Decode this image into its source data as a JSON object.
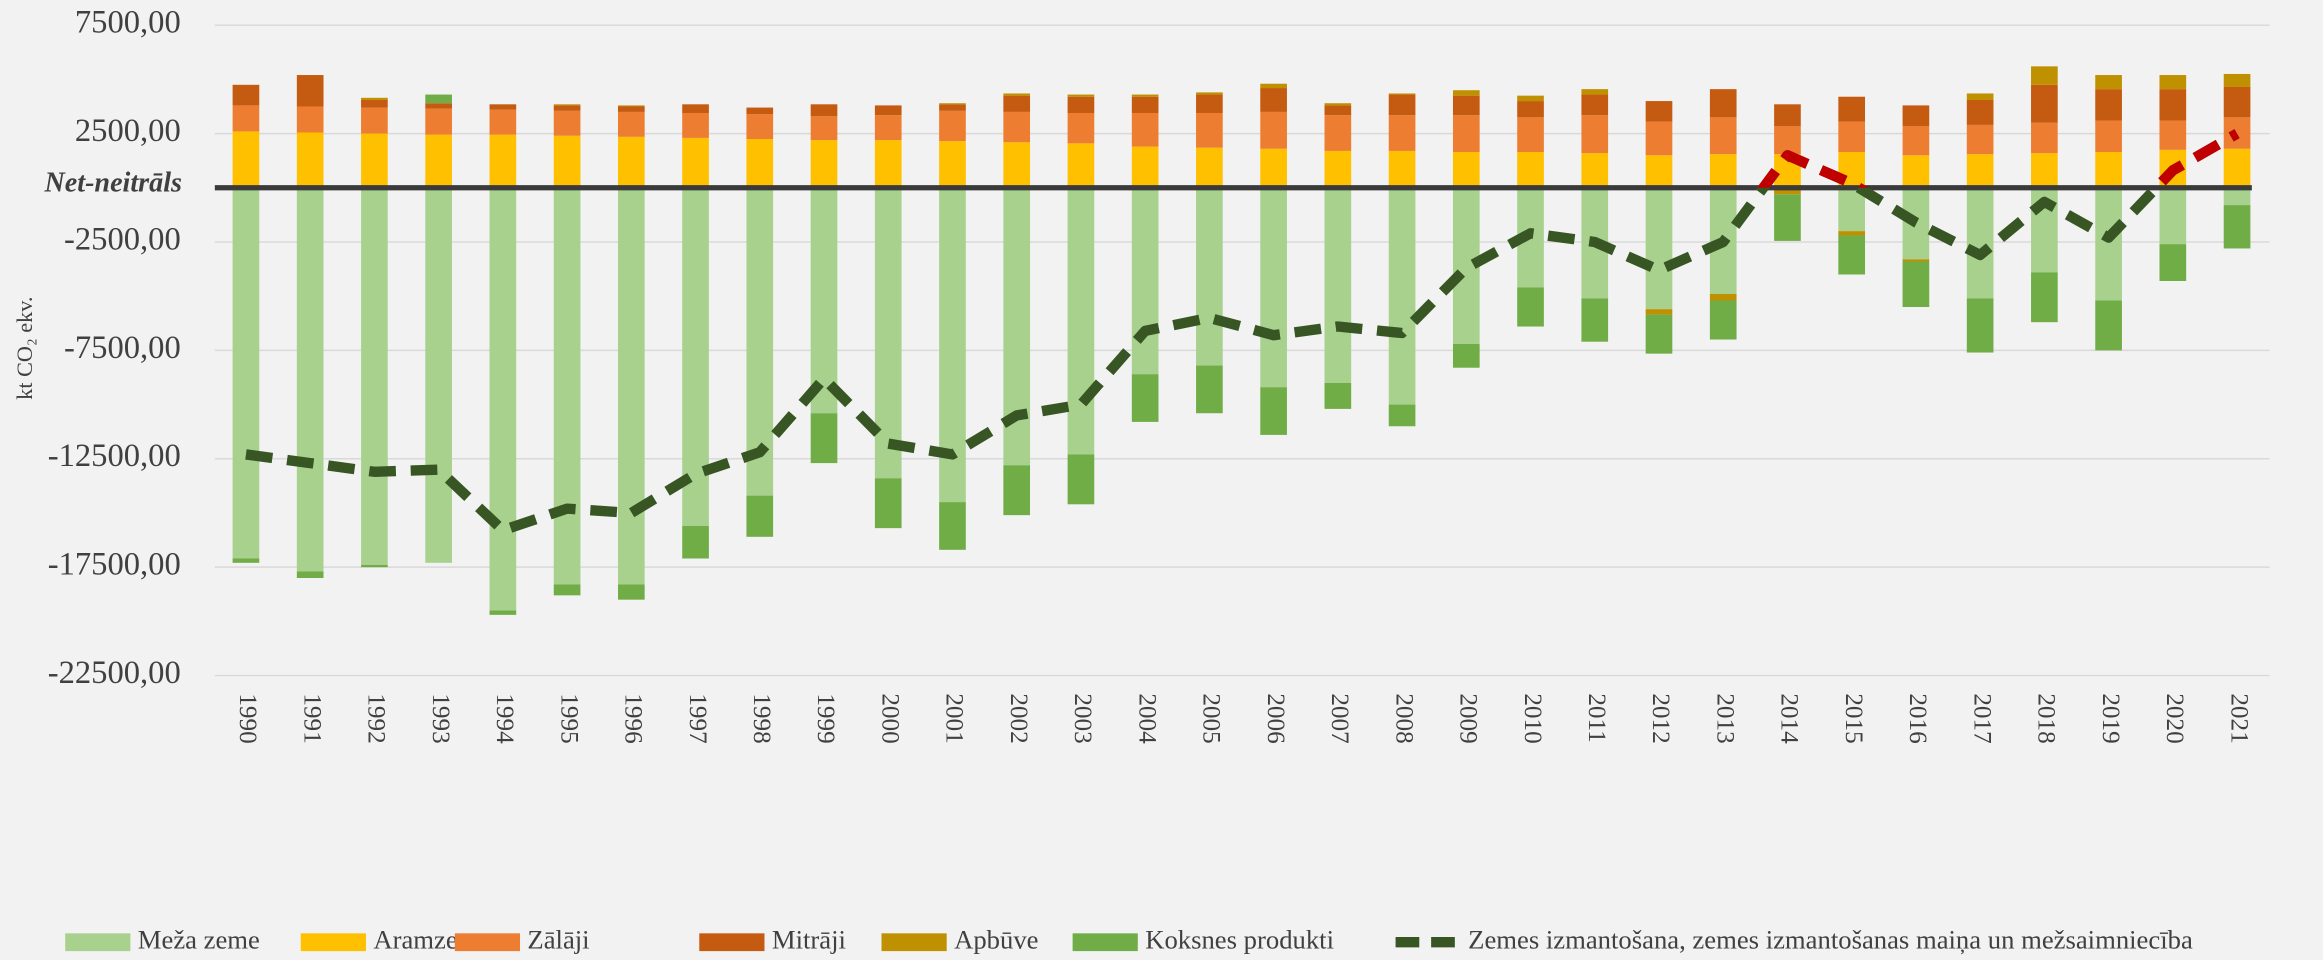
{
  "chart_data": {
    "type": "bar",
    "stacked": true,
    "y_label": "kt CO₂ ekv.",
    "annotation": {
      "text": "Net-neitrāls",
      "value": 0
    },
    "categories": [
      "1990",
      "1991",
      "1992",
      "1993",
      "1994",
      "1995",
      "1996",
      "1997",
      "1998",
      "1999",
      "2000",
      "2001",
      "2002",
      "2003",
      "2004",
      "2005",
      "2006",
      "2007",
      "2008",
      "2009",
      "2010",
      "2011",
      "2012",
      "2013",
      "2014",
      "2015",
      "2016",
      "2017",
      "2018",
      "2019",
      "2020",
      "2021"
    ],
    "ylim": [
      -22500,
      7500
    ],
    "yticks": [
      {
        "value": 7500,
        "label": "7500,00"
      },
      {
        "value": 2500,
        "label": "2500,00"
      },
      {
        "value": -2500,
        "label": "-2500,00"
      },
      {
        "value": -7500,
        "label": "-7500,00"
      },
      {
        "value": -12500,
        "label": "-12500,00"
      },
      {
        "value": -17500,
        "label": "-17500,00"
      },
      {
        "value": -22500,
        "label": "-22500,00"
      }
    ],
    "grid": true,
    "series": [
      {
        "name": "Meža zeme",
        "color": "#a9d18e",
        "values": [
          -17100,
          -17700,
          -17400,
          -17300,
          -19500,
          -18300,
          -18300,
          -15600,
          -14200,
          -10400,
          -13400,
          -14500,
          -12800,
          -12300,
          -8600,
          -8200,
          -9200,
          -9000,
          -10000,
          -7200,
          -4600,
          -5100,
          -5600,
          -4900,
          -100,
          -2000,
          -3300,
          -5100,
          -3900,
          -5200,
          -2600,
          -800
        ]
      },
      {
        "name": "Aramzeme",
        "color": "#ffc000",
        "values": [
          2600,
          2550,
          2500,
          2450,
          2450,
          2400,
          2350,
          2300,
          2250,
          2200,
          2200,
          2150,
          2100,
          2050,
          1900,
          1850,
          1800,
          1700,
          1700,
          1650,
          1650,
          1600,
          1500,
          1550,
          1550,
          1650,
          1500,
          1550,
          1600,
          1650,
          1750,
          1800
        ]
      },
      {
        "name": "Zālāji",
        "color": "#ed7d31",
        "values": [
          1200,
          1200,
          1200,
          1200,
          1150,
          1150,
          1150,
          1150,
          1150,
          1100,
          1150,
          1400,
          1400,
          1400,
          1550,
          1600,
          1700,
          1650,
          1650,
          1700,
          1600,
          1750,
          1550,
          1700,
          1300,
          1400,
          1350,
          1350,
          1400,
          1450,
          1350,
          1450
        ]
      },
      {
        "name": "Mitrāji",
        "color": "#c55a11",
        "values": [
          950,
          1450,
          350,
          250,
          250,
          250,
          250,
          400,
          300,
          550,
          450,
          300,
          750,
          750,
          750,
          850,
          1100,
          450,
          950,
          900,
          750,
          950,
          950,
          1300,
          1000,
          1150,
          950,
          1150,
          1750,
          1450,
          1450,
          1400
        ]
      },
      {
        "name": "Apbūve",
        "color": "#bf9000",
        "values": [
          0,
          0,
          100,
          0,
          0,
          50,
          50,
          0,
          0,
          0,
          0,
          50,
          100,
          100,
          100,
          100,
          200,
          100,
          50,
          250,
          250,
          250,
          -250,
          -300,
          -200,
          -200,
          -100,
          300,
          850,
          650,
          650,
          600
        ]
      },
      {
        "name": "Koksnes produkti",
        "color": "#70ad47",
        "values": [
          -200,
          -300,
          -100,
          400,
          -200,
          -500,
          -700,
          -1500,
          -1900,
          -2300,
          -2300,
          -2200,
          -2300,
          -2300,
          -2200,
          -2200,
          -2200,
          -1200,
          -1000,
          -1100,
          -1800,
          -2000,
          -1800,
          -1800,
          -2150,
          -1800,
          -2100,
          -2500,
          -2300,
          -2300,
          -1700,
          -2000
        ]
      }
    ],
    "line": {
      "name": "Zemes izmantošana, zemes izmantošanas maiņa un mežsaimniecība",
      "color": "#375623",
      "color_above_zero": "#c00000",
      "values": [
        -12300,
        -12700,
        -13100,
        -13000,
        -15800,
        -14800,
        -15000,
        -13200,
        -12200,
        -8800,
        -11800,
        -12300,
        -10500,
        -10000,
        -6600,
        -6000,
        -6800,
        -6400,
        -6700,
        -3700,
        -2100,
        -2500,
        -3800,
        -2500,
        1500,
        200,
        -1600,
        -3100,
        -650,
        -2300,
        800,
        2500
      ]
    }
  }
}
